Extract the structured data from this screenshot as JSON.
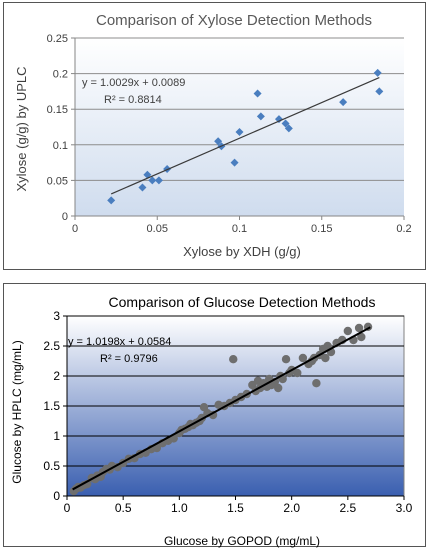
{
  "chart_data": [
    {
      "type": "scatter",
      "title": "Comparison of Xylose Detection Methods",
      "xlabel": "Xylose by XDH (g/g)",
      "ylabel": "Xylose (g/g) by UPLC",
      "xlim": [
        0,
        0.2
      ],
      "ylim": [
        0,
        0.25
      ],
      "x_ticks": [
        "0",
        "0.05",
        "0.1",
        "0.15",
        "0.2"
      ],
      "y_ticks": [
        "0",
        "0.05",
        "0.1",
        "0.15",
        "0.2",
        "0.25"
      ],
      "grid": "horizontal",
      "equation": "y = 1.0029x + 0.0089",
      "r_squared": "R² = 0.8814",
      "trendline": {
        "slope": 1.0029,
        "intercept": 0.0089,
        "x_range": [
          0.022,
          0.185
        ]
      },
      "points": [
        {
          "x": 0.022,
          "y": 0.022
        },
        {
          "x": 0.041,
          "y": 0.04
        },
        {
          "x": 0.044,
          "y": 0.058
        },
        {
          "x": 0.047,
          "y": 0.05
        },
        {
          "x": 0.051,
          "y": 0.05
        },
        {
          "x": 0.056,
          "y": 0.066
        },
        {
          "x": 0.087,
          "y": 0.105
        },
        {
          "x": 0.089,
          "y": 0.098
        },
        {
          "x": 0.097,
          "y": 0.075
        },
        {
          "x": 0.1,
          "y": 0.118
        },
        {
          "x": 0.111,
          "y": 0.172
        },
        {
          "x": 0.113,
          "y": 0.14
        },
        {
          "x": 0.124,
          "y": 0.136
        },
        {
          "x": 0.128,
          "y": 0.13
        },
        {
          "x": 0.13,
          "y": 0.123
        },
        {
          "x": 0.163,
          "y": 0.16
        },
        {
          "x": 0.184,
          "y": 0.201
        },
        {
          "x": 0.185,
          "y": 0.175
        }
      ],
      "colors": {
        "marker": "#4a7ebf",
        "trendline": "#3a3a3a",
        "plot_bg_top": "#ffffff",
        "plot_bg_bottom": "#cfdcee",
        "title": "#595959"
      }
    },
    {
      "type": "scatter",
      "title": "Comparison of Glucose Detection Methods",
      "xlabel": "Glucose by GOPOD (mg/mL)",
      "ylabel": "Glucose by HPLC (mg/mL)",
      "xlim": [
        0,
        3.0
      ],
      "ylim": [
        0,
        3
      ],
      "x_ticks": [
        "0",
        "0.5",
        "1.0",
        "1.5",
        "2.0",
        "2.5",
        "3.0"
      ],
      "y_ticks": [
        "0",
        "0.5",
        "1",
        "1.5",
        "2",
        "2.5",
        "3"
      ],
      "grid": "horizontal",
      "equation": "y = 1.0198x + 0.0584",
      "r_squared": "R² = 0.9796",
      "trendline": {
        "slope": 1.0198,
        "intercept": 0.0584,
        "x_range": [
          0.05,
          2.7
        ]
      },
      "points": [
        {
          "x": 0.06,
          "y": 0.08
        },
        {
          "x": 0.08,
          "y": 0.12
        },
        {
          "x": 0.1,
          "y": 0.15
        },
        {
          "x": 0.12,
          "y": 0.14
        },
        {
          "x": 0.15,
          "y": 0.18
        },
        {
          "x": 0.18,
          "y": 0.2
        },
        {
          "x": 0.22,
          "y": 0.3
        },
        {
          "x": 0.25,
          "y": 0.28
        },
        {
          "x": 0.27,
          "y": 0.34
        },
        {
          "x": 0.3,
          "y": 0.32
        },
        {
          "x": 0.32,
          "y": 0.4
        },
        {
          "x": 0.35,
          "y": 0.45
        },
        {
          "x": 0.38,
          "y": 0.44
        },
        {
          "x": 0.4,
          "y": 0.5
        },
        {
          "x": 0.45,
          "y": 0.48
        },
        {
          "x": 0.5,
          "y": 0.55
        },
        {
          "x": 0.55,
          "y": 0.62
        },
        {
          "x": 0.6,
          "y": 0.63
        },
        {
          "x": 0.65,
          "y": 0.7
        },
        {
          "x": 0.7,
          "y": 0.72
        },
        {
          "x": 0.75,
          "y": 0.78
        },
        {
          "x": 0.8,
          "y": 0.8
        },
        {
          "x": 0.85,
          "y": 0.88
        },
        {
          "x": 0.9,
          "y": 0.92
        },
        {
          "x": 0.95,
          "y": 0.96
        },
        {
          "x": 1.0,
          "y": 1.05
        },
        {
          "x": 1.02,
          "y": 1.1
        },
        {
          "x": 1.05,
          "y": 1.12
        },
        {
          "x": 1.08,
          "y": 1.15
        },
        {
          "x": 1.1,
          "y": 1.2
        },
        {
          "x": 1.12,
          "y": 1.18
        },
        {
          "x": 1.15,
          "y": 1.22
        },
        {
          "x": 1.18,
          "y": 1.25
        },
        {
          "x": 1.2,
          "y": 1.3
        },
        {
          "x": 1.22,
          "y": 1.48
        },
        {
          "x": 1.25,
          "y": 1.38
        },
        {
          "x": 1.3,
          "y": 1.35
        },
        {
          "x": 1.35,
          "y": 1.52
        },
        {
          "x": 1.4,
          "y": 1.5
        },
        {
          "x": 1.45,
          "y": 1.55
        },
        {
          "x": 1.48,
          "y": 2.28
        },
        {
          "x": 1.5,
          "y": 1.6
        },
        {
          "x": 1.55,
          "y": 1.65
        },
        {
          "x": 1.6,
          "y": 1.7
        },
        {
          "x": 1.65,
          "y": 1.85
        },
        {
          "x": 1.68,
          "y": 1.75
        },
        {
          "x": 1.7,
          "y": 1.92
        },
        {
          "x": 1.72,
          "y": 1.8
        },
        {
          "x": 1.75,
          "y": 1.88
        },
        {
          "x": 1.78,
          "y": 1.82
        },
        {
          "x": 1.8,
          "y": 1.95
        },
        {
          "x": 1.82,
          "y": 1.85
        },
        {
          "x": 1.85,
          "y": 1.9
        },
        {
          "x": 1.88,
          "y": 1.8
        },
        {
          "x": 1.9,
          "y": 2.0
        },
        {
          "x": 1.92,
          "y": 1.95
        },
        {
          "x": 1.95,
          "y": 2.28
        },
        {
          "x": 1.98,
          "y": 2.05
        },
        {
          "x": 2.0,
          "y": 2.1
        },
        {
          "x": 2.05,
          "y": 2.05
        },
        {
          "x": 2.1,
          "y": 2.3
        },
        {
          "x": 2.15,
          "y": 2.2
        },
        {
          "x": 2.18,
          "y": 2.25
        },
        {
          "x": 2.2,
          "y": 2.3
        },
        {
          "x": 2.22,
          "y": 1.88
        },
        {
          "x": 2.25,
          "y": 2.35
        },
        {
          "x": 2.28,
          "y": 2.45
        },
        {
          "x": 2.3,
          "y": 2.3
        },
        {
          "x": 2.32,
          "y": 2.5
        },
        {
          "x": 2.35,
          "y": 2.4
        },
        {
          "x": 2.4,
          "y": 2.55
        },
        {
          "x": 2.45,
          "y": 2.6
        },
        {
          "x": 2.5,
          "y": 2.75
        },
        {
          "x": 2.55,
          "y": 2.6
        },
        {
          "x": 2.6,
          "y": 2.8
        },
        {
          "x": 2.62,
          "y": 2.65
        },
        {
          "x": 2.68,
          "y": 2.82
        }
      ],
      "colors": {
        "marker": "#6e6e6e",
        "trendline": "#000000",
        "plot_bg_top": "#ffffff",
        "plot_bg_bottom": "#3a5fb0",
        "title": "#000000"
      }
    }
  ]
}
